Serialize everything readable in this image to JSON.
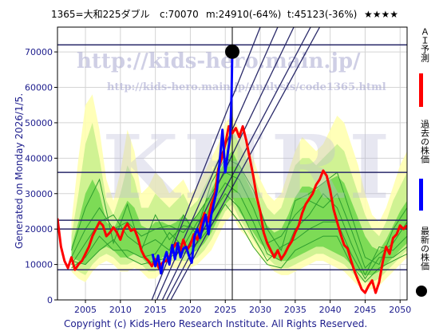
{
  "header": {
    "ticker": "1365=大和225ダブル",
    "current": "c:70070",
    "min_stat": "m:24910(-64%)",
    "target_stat": "t:45123(-36%)",
    "rating": "★★★★"
  },
  "generated_label": "Generated on Monday 2026/1/5.",
  "footer": "Copyright (c) Kids-Hero Research Institute. All Rights Reserved.",
  "watermark": {
    "url": "http://kids-hero.main.jp/",
    "page": "http://kids-hero.main.jp/analysis/code1365.html",
    "brand": "KHRI"
  },
  "legend": {
    "prediction": "ＡＩ予測",
    "past": "過去の株価",
    "latest": "最新の株価"
  },
  "colors": {
    "prediction": "#ff0000",
    "past": "#0000ff",
    "latest": "#000000",
    "band_light": "#ffffb0",
    "band_mid": "#c8f08c",
    "band_dark": "#5ad23c",
    "guide_line": "#2a2a6a"
  },
  "chart_data": {
    "type": "line",
    "xlim": [
      2001,
      2051
    ],
    "ylim": [
      0,
      77000
    ],
    "x_ticks": [
      2005,
      2010,
      2015,
      2020,
      2025,
      2030,
      2035,
      2040,
      2045,
      2050
    ],
    "y_ticks": [
      0,
      10000,
      20000,
      30000,
      40000,
      50000,
      60000,
      70000
    ],
    "latest_point": {
      "x": 2026.0,
      "y": 70070
    },
    "horizontal_levels": [
      72000,
      36000,
      22500,
      20000,
      8500
    ],
    "vertical_marker_x": 2026.0,
    "diagonal_lines": [
      {
        "x1": 2014.5,
        "y1": 0,
        "x2": 2030.0,
        "y2": 77000
      },
      {
        "x1": 2015.2,
        "y1": 0,
        "x2": 2032.5,
        "y2": 77000
      },
      {
        "x1": 2016.0,
        "y1": 0,
        "x2": 2034.8,
        "y2": 77000
      },
      {
        "x1": 2016.6,
        "y1": 0,
        "x2": 2037.2,
        "y2": 77000
      },
      {
        "x1": 2017.2,
        "y1": 0,
        "x2": 2038.5,
        "y2": 77000
      }
    ],
    "series": [
      {
        "name": "過去の株価",
        "x": [
          2014.6,
          2015.0,
          2015.4,
          2015.8,
          2016.2,
          2016.6,
          2017.0,
          2017.4,
          2017.8,
          2018.2,
          2018.6,
          2019.0,
          2019.4,
          2019.8,
          2020.2,
          2020.6,
          2021.0,
          2021.4,
          2021.8,
          2022.2,
          2022.6,
          2023.0,
          2023.4,
          2023.8,
          2024.2,
          2024.6,
          2025.0,
          2025.4,
          2025.7,
          2025.9,
          2026.0
        ],
        "y": [
          13000,
          9500,
          12500,
          7500,
          11000,
          13500,
          10000,
          15500,
          11500,
          16000,
          12000,
          14500,
          15000,
          12500,
          10500,
          18000,
          20000,
          17500,
          21000,
          24000,
          18500,
          24000,
          27500,
          31000,
          39000,
          48000,
          36000,
          42000,
          46000,
          58000,
          70070
        ]
      },
      {
        "name": "ＡＩ予測",
        "x": [
          2001.0,
          2001.5,
          2002.0,
          2002.5,
          2003.0,
          2003.5,
          2004.0,
          2004.5,
          2005.0,
          2005.5,
          2006.0,
          2006.5,
          2007.0,
          2007.5,
          2008.0,
          2008.5,
          2009.0,
          2009.5,
          2010.0,
          2010.5,
          2011.0,
          2011.5,
          2012.0,
          2012.5,
          2013.0,
          2013.5,
          2014.0,
          2014.5,
          2015.0,
          2015.5,
          2016.0,
          2016.5,
          2017.0,
          2017.5,
          2018.0,
          2018.5,
          2019.0,
          2019.5,
          2020.0,
          2020.5,
          2021.0,
          2021.5,
          2022.0,
          2022.5,
          2023.0,
          2023.5,
          2024.0,
          2024.5,
          2025.0,
          2025.5,
          2026.0,
          2026.5,
          2027.0,
          2027.5,
          2028.0,
          2028.5,
          2029.0,
          2029.5,
          2030.0,
          2030.5,
          2031.0,
          2031.5,
          2032.0,
          2032.5,
          2033.0,
          2033.5,
          2034.0,
          2034.5,
          2035.0,
          2035.5,
          2036.0,
          2036.5,
          2037.0,
          2037.5,
          2038.0,
          2038.5,
          2039.0,
          2039.5,
          2040.0,
          2040.5,
          2041.0,
          2041.5,
          2042.0,
          2042.5,
          2043.0,
          2043.5,
          2044.0,
          2044.5,
          2045.0,
          2045.5,
          2046.0,
          2046.5,
          2047.0,
          2047.5,
          2048.0,
          2048.5,
          2049.0,
          2049.5,
          2050.0,
          2050.5,
          2051.0
        ],
        "y": [
          23000,
          15000,
          11000,
          9000,
          12000,
          8500,
          10000,
          11000,
          13000,
          15000,
          18000,
          20000,
          22000,
          21000,
          18000,
          19000,
          20500,
          19000,
          17000,
          20000,
          21500,
          19500,
          20000,
          17500,
          14000,
          12000,
          11000,
          9500,
          11500,
          9000,
          10500,
          11000,
          12000,
          14500,
          16000,
          13500,
          17000,
          14000,
          15500,
          18500,
          17000,
          21000,
          24500,
          22000,
          27000,
          29500,
          37000,
          40000,
          44000,
          49000,
          47000,
          48500,
          46000,
          49000,
          45000,
          40000,
          35000,
          29000,
          25000,
          19000,
          16000,
          14000,
          12000,
          14000,
          11500,
          13000,
          15000,
          16500,
          19000,
          21000,
          24500,
          27000,
          28500,
          30000,
          32500,
          34000,
          36500,
          35000,
          31000,
          25500,
          22000,
          18500,
          15500,
          14500,
          11000,
          8000,
          5500,
          3000,
          2000,
          4000,
          5500,
          2000,
          5000,
          10500,
          15000,
          13000,
          17500,
          18500,
          21000,
          20000,
          21000
        ]
      }
    ],
    "projection_bands": [
      {
        "tone": "light",
        "x": [
          2003,
          2004,
          2005,
          2006,
          2007,
          2008,
          2009,
          2010,
          2011,
          2012,
          2013,
          2014,
          2015,
          2016,
          2017,
          2018,
          2019,
          2020,
          2021,
          2022,
          2023,
          2024,
          2025,
          2026,
          2027,
          2028,
          2029,
          2030,
          2031,
          2032,
          2033,
          2034,
          2035,
          2036,
          2037,
          2038,
          2039,
          2040,
          2041,
          2042,
          2043,
          2044,
          2045,
          2046,
          2047,
          2048,
          2049,
          2050,
          2051
        ],
        "upper": [
          22000,
          40000,
          55000,
          58000,
          48000,
          34000,
          28000,
          36000,
          48000,
          42000,
          30000,
          32000,
          36000,
          34000,
          30000,
          32000,
          34000,
          30000,
          32000,
          36000,
          40000,
          44000,
          50000,
          52000,
          48000,
          44000,
          40000,
          34000,
          30000,
          28000,
          30000,
          36000,
          42000,
          46000,
          44000,
          42000,
          44000,
          48000,
          52000,
          50000,
          44000,
          38000,
          30000,
          24000,
          22000,
          26000,
          32000,
          38000,
          42000
        ],
        "lower": [
          8000,
          6000,
          5000,
          8000,
          10000,
          11000,
          10000,
          8000,
          8000,
          9000,
          8000,
          6000,
          6000,
          8000,
          9000,
          9000,
          9000,
          9000,
          10000,
          12000,
          14000,
          18000,
          22000,
          24000,
          20000,
          18000,
          15000,
          12000,
          10000,
          8000,
          7000,
          7000,
          8000,
          9000,
          10000,
          11000,
          11000,
          10000,
          9000,
          8000,
          6000,
          4000,
          3000,
          3000,
          4000,
          6000,
          8000,
          10000,
          12000
        ]
      },
      {
        "tone": "mid",
        "x": [
          2003,
          2004,
          2005,
          2006,
          2007,
          2008,
          2009,
          2010,
          2011,
          2012,
          2013,
          2014,
          2015,
          2016,
          2017,
          2018,
          2019,
          2020,
          2021,
          2022,
          2023,
          2024,
          2025,
          2026,
          2027,
          2028,
          2029,
          2030,
          2031,
          2032,
          2033,
          2034,
          2035,
          2036,
          2037,
          2038,
          2039,
          2040,
          2041,
          2042,
          2043,
          2044,
          2045,
          2046,
          2047,
          2048,
          2049,
          2050,
          2051
        ],
        "upper": [
          18000,
          30000,
          44000,
          50000,
          40000,
          28000,
          24000,
          30000,
          38000,
          34000,
          26000,
          26000,
          30000,
          28000,
          26000,
          28000,
          30000,
          26000,
          28000,
          32000,
          36000,
          40000,
          46000,
          48000,
          44000,
          40000,
          36000,
          30000,
          26000,
          24000,
          26000,
          32000,
          38000,
          40000,
          40000,
          38000,
          40000,
          42000,
          44000,
          42000,
          36000,
          30000,
          24000,
          20000,
          18000,
          22000,
          28000,
          32000,
          36000
        ],
        "lower": [
          10000,
          8000,
          7000,
          10000,
          12000,
          13000,
          12000,
          10000,
          10000,
          11000,
          10000,
          8000,
          8000,
          10000,
          11000,
          11000,
          11000,
          11000,
          12000,
          14000,
          17000,
          21000,
          25000,
          27000,
          23000,
          20000,
          17000,
          14000,
          12000,
          10000,
          9000,
          9000,
          10000,
          11000,
          12000,
          13000,
          13000,
          12000,
          11000,
          10000,
          8000,
          6000,
          5000,
          5000,
          6000,
          8000,
          10000,
          12000,
          14000
        ]
      },
      {
        "tone": "dark",
        "x": [
          2003,
          2004,
          2005,
          2006,
          2007,
          2008,
          2009,
          2010,
          2011,
          2012,
          2013,
          2014,
          2015,
          2016,
          2017,
          2018,
          2019,
          2020,
          2021,
          2022,
          2023,
          2024,
          2025,
          2026,
          2027,
          2028,
          2029,
          2030,
          2031,
          2032,
          2033,
          2034,
          2035,
          2036,
          2037,
          2038,
          2039,
          2040,
          2041,
          2042,
          2043,
          2044,
          2045,
          2046,
          2047,
          2048,
          2049,
          2050,
          2051
        ],
        "upper": [
          15000,
          22000,
          30000,
          34000,
          30000,
          22000,
          20000,
          24000,
          28000,
          26000,
          21000,
          20000,
          22000,
          22000,
          21000,
          22000,
          24000,
          22000,
          24000,
          27000,
          31000,
          35000,
          40000,
          42000,
          38000,
          34000,
          30000,
          25000,
          21000,
          19000,
          20000,
          24000,
          29000,
          32000,
          32000,
          31000,
          33000,
          34000,
          35000,
          33000,
          28000,
          23000,
          18000,
          15000,
          14000,
          17000,
          21000,
          25000,
          28000
        ],
        "lower": [
          12000,
          11000,
          10000,
          12000,
          14000,
          15000,
          14000,
          12000,
          12000,
          13000,
          12000,
          10000,
          10000,
          12000,
          13000,
          13000,
          13000,
          13000,
          14000,
          16000,
          19000,
          23000,
          27000,
          29000,
          25000,
          22000,
          19000,
          16000,
          14000,
          12000,
          11000,
          11000,
          12000,
          13000,
          14000,
          15000,
          15000,
          14000,
          13000,
          12000,
          10000,
          8000,
          7000,
          7000,
          8000,
          10000,
          12000,
          14000,
          16000
        ]
      }
    ],
    "scenario_lines": [
      {
        "x": [
          2003,
          2005,
          2007,
          2009,
          2011,
          2013,
          2015,
          2017,
          2019,
          2021,
          2023,
          2025,
          2027,
          2029,
          2031,
          2033,
          2035,
          2037,
          2039,
          2041,
          2043,
          2045,
          2047,
          2049,
          2051
        ],
        "y": [
          14000,
          26000,
          34000,
          16000,
          27000,
          14000,
          24000,
          17000,
          21000,
          20000,
          33000,
          40000,
          38000,
          31000,
          20000,
          14000,
          28000,
          30000,
          33000,
          36000,
          24000,
          12000,
          10000,
          20000,
          26000
        ]
      },
      {
        "x": [
          2003,
          2005,
          2007,
          2009,
          2011,
          2013,
          2015,
          2017,
          2019,
          2021,
          2023,
          2025,
          2027,
          2029,
          2031,
          2033,
          2035,
          2037,
          2039,
          2041,
          2043,
          2045,
          2047,
          2049,
          2051
        ],
        "y": [
          12000,
          20000,
          26000,
          20000,
          22000,
          18000,
          20000,
          21000,
          19000,
          24000,
          30000,
          36000,
          34000,
          26000,
          16000,
          18000,
          24000,
          28000,
          26000,
          30000,
          20000,
          9000,
          13000,
          16000,
          22000
        ]
      },
      {
        "x": [
          2003,
          2005,
          2007,
          2009,
          2011,
          2013,
          2015,
          2017,
          2019,
          2021,
          2023,
          2025,
          2027,
          2029,
          2031,
          2033,
          2035,
          2037,
          2039,
          2041,
          2043,
          2045,
          2047,
          2049,
          2051
        ],
        "y": [
          10000,
          16000,
          22000,
          24000,
          18000,
          15000,
          17000,
          14000,
          24000,
          18000,
          27000,
          33000,
          30000,
          22000,
          13000,
          11000,
          20000,
          24000,
          30000,
          26000,
          16000,
          7000,
          15000,
          14000,
          18000
        ]
      },
      {
        "x": [
          2003,
          2005,
          2007,
          2009,
          2011,
          2013,
          2015,
          2017,
          2019,
          2021,
          2023,
          2025,
          2027,
          2029,
          2031,
          2033,
          2035,
          2037,
          2039,
          2041,
          2043,
          2045,
          2047,
          2049,
          2051
        ],
        "y": [
          9000,
          12000,
          18000,
          14000,
          14000,
          12000,
          13000,
          19000,
          15000,
          22000,
          24000,
          30000,
          26000,
          18000,
          11000,
          15000,
          17000,
          20000,
          22000,
          22000,
          13000,
          6000,
          12000,
          12000,
          15000
        ]
      },
      {
        "x": [
          2003,
          2005,
          2007,
          2009,
          2011,
          2013,
          2015,
          2017,
          2019,
          2021,
          2023,
          2025,
          2027,
          2029,
          2031,
          2033,
          2035,
          2037,
          2039,
          2041,
          2043,
          2045,
          2047,
          2049,
          2051
        ],
        "y": [
          11000,
          10000,
          14000,
          17000,
          12000,
          10000,
          11000,
          12000,
          14000,
          16000,
          21000,
          27000,
          22000,
          15000,
          10000,
          9000,
          14000,
          16000,
          18000,
          18000,
          10000,
          5000,
          9000,
          11000,
          13000
        ]
      }
    ]
  }
}
